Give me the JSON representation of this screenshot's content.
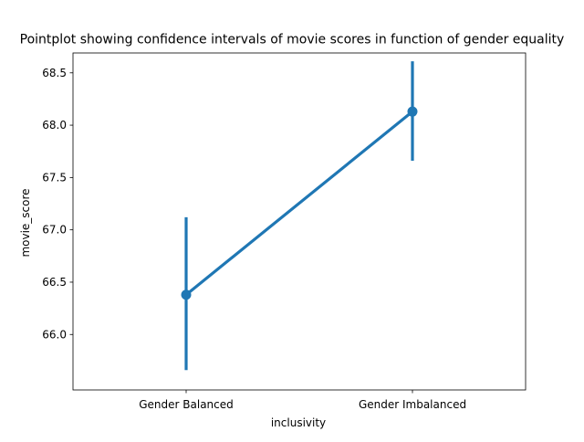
{
  "chart_data": {
    "type": "line",
    "title": "Pointplot showing confidence intervals of movie scores in function of gender equality",
    "xlabel": "inclusivity",
    "ylabel": "movie_score",
    "categories": [
      "Gender Balanced",
      "Gender Imbalanced"
    ],
    "series": [
      {
        "values": [
          66.38,
          68.13
        ],
        "ci_low": [
          65.66,
          67.66
        ],
        "ci_high": [
          67.12,
          68.61
        ],
        "color": "#1f77b4"
      }
    ],
    "ylim": [
      65.47,
      68.69
    ],
    "yticks": [
      66.0,
      66.5,
      67.0,
      67.5,
      68.0,
      68.5
    ],
    "ytick_labels": [
      "66.0",
      "66.5",
      "67.0",
      "67.5",
      "68.0",
      "68.5"
    ],
    "grid": false,
    "legend": "none"
  }
}
